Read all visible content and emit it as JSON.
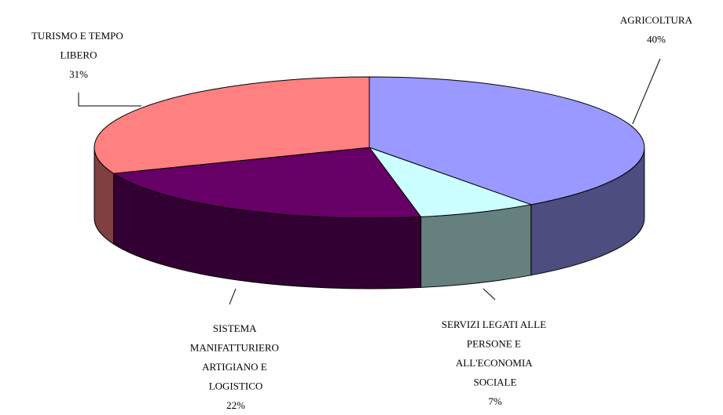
{
  "chart_data": {
    "type": "pie3d",
    "categories": [
      "AGRICOLTURA",
      "SERVIZI LEGATI ALLE PERSONE E ALL'ECONOMIA SOCIALE",
      "SISTEMA MANIFATTURIERO ARTIGIANO E LOGISTICO",
      "TURISMO E TEMPO LIBERO"
    ],
    "values": [
      40,
      7,
      22,
      31
    ],
    "value_labels": [
      "40%",
      "7%",
      "22%",
      "31%"
    ],
    "colors": [
      "#9999ff",
      "#ccffff",
      "#660066",
      "#ff8080"
    ]
  }
}
